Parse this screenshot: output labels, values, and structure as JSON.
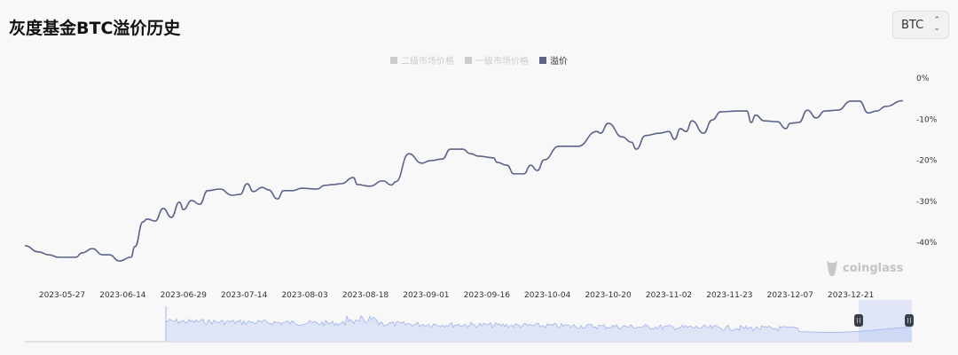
{
  "header": {
    "title": "灰度基金BTC溢价历史"
  },
  "selector": {
    "value": "BTC"
  },
  "legend": [
    {
      "label": "二级市场价格",
      "color": "#cccccc",
      "active": false
    },
    {
      "label": "一级市场价格",
      "color": "#cccccc",
      "active": false
    },
    {
      "label": "溢价",
      "color": "#5b6389",
      "active": true
    }
  ],
  "watermark": "coinglass",
  "chart_data": {
    "type": "line",
    "title": "",
    "xlabel": "",
    "ylabel": "",
    "x_ticks": [
      "2023-05-27",
      "2023-06-14",
      "2023-06-29",
      "2023-07-14",
      "2023-08-03",
      "2023-08-18",
      "2023-09-01",
      "2023-09-16",
      "2023-10-04",
      "2023-10-20",
      "2023-11-02",
      "2023-11-23",
      "2023-12-07",
      "2023-12-21"
    ],
    "y_ticks": [
      "0%",
      "-10%",
      "-20%",
      "-30%",
      "-40%"
    ],
    "ylim": [
      -45,
      0
    ],
    "unit": "%",
    "grid": false,
    "legend_position": "top",
    "line_color": "#5b6389",
    "series": [
      {
        "name": "溢价",
        "points": [
          [
            "2023-05-16",
            -40.8
          ],
          [
            "2023-05-20",
            -42.3
          ],
          [
            "2023-05-23",
            -43.0
          ],
          [
            "2023-05-26",
            -43.6
          ],
          [
            "2023-05-31",
            -43.6
          ],
          [
            "2023-06-02",
            -42.5
          ],
          [
            "2023-06-05",
            -41.5
          ],
          [
            "2023-06-08",
            -43.0
          ],
          [
            "2023-06-10",
            -43.0
          ],
          [
            "2023-06-13",
            -44.5
          ],
          [
            "2023-06-16",
            -43.6
          ],
          [
            "2023-06-17",
            -41.0
          ],
          [
            "2023-06-19",
            -35.0
          ],
          [
            "2023-06-20",
            -34.3
          ],
          [
            "2023-06-22",
            -34.8
          ],
          [
            "2023-06-24",
            -31.7
          ],
          [
            "2023-06-26",
            -33.9
          ],
          [
            "2023-06-28",
            -30.2
          ],
          [
            "2023-06-29",
            -32.0
          ],
          [
            "2023-07-01",
            -29.8
          ],
          [
            "2023-07-03",
            -30.7
          ],
          [
            "2023-07-05",
            -27.4
          ],
          [
            "2023-07-08",
            -27.0
          ],
          [
            "2023-07-11",
            -28.5
          ],
          [
            "2023-07-13",
            -28.3
          ],
          [
            "2023-07-15",
            -25.7
          ],
          [
            "2023-07-17",
            -27.6
          ],
          [
            "2023-07-20",
            -26.6
          ],
          [
            "2023-07-22",
            -27.2
          ],
          [
            "2023-07-25",
            -29.4
          ],
          [
            "2023-07-27",
            -27.4
          ],
          [
            "2023-07-30",
            -27.4
          ],
          [
            "2023-08-02",
            -26.8
          ],
          [
            "2023-08-06",
            -27.0
          ],
          [
            "2023-08-08",
            -26.1
          ],
          [
            "2023-08-10",
            -25.9
          ],
          [
            "2023-08-12",
            -25.7
          ],
          [
            "2023-08-15",
            -24.2
          ],
          [
            "2023-08-16",
            -25.9
          ],
          [
            "2023-08-19",
            -26.3
          ],
          [
            "2023-08-22",
            -25.0
          ],
          [
            "2023-08-24",
            -26.0
          ],
          [
            "2023-08-25",
            -25.2
          ],
          [
            "2023-08-28",
            -18.4
          ],
          [
            "2023-08-31",
            -20.7
          ],
          [
            "2023-09-02",
            -20.1
          ],
          [
            "2023-09-05",
            -19.7
          ],
          [
            "2023-09-07",
            -17.3
          ],
          [
            "2023-09-10",
            -17.3
          ],
          [
            "2023-09-12",
            -18.4
          ],
          [
            "2023-09-14",
            -19.0
          ],
          [
            "2023-09-18",
            -19.4
          ],
          [
            "2023-09-19",
            -20.5
          ],
          [
            "2023-09-22",
            -21.2
          ],
          [
            "2023-09-24",
            -23.3
          ],
          [
            "2023-09-27",
            -23.3
          ],
          [
            "2023-09-29",
            -21.2
          ],
          [
            "2023-10-01",
            -22.5
          ],
          [
            "2023-10-03",
            -19.9
          ],
          [
            "2023-10-07",
            -16.6
          ],
          [
            "2023-10-12",
            -16.6
          ],
          [
            "2023-10-17",
            -13.0
          ],
          [
            "2023-10-18",
            -13.4
          ],
          [
            "2023-10-20",
            -11.0
          ],
          [
            "2023-10-23",
            -14.3
          ],
          [
            "2023-10-25",
            -15.6
          ],
          [
            "2023-10-26",
            -17.3
          ],
          [
            "2023-10-28",
            -14.0
          ],
          [
            "2023-10-31",
            -13.4
          ],
          [
            "2023-11-02",
            -13.0
          ],
          [
            "2023-11-04",
            -14.9
          ],
          [
            "2023-11-06",
            -12.3
          ],
          [
            "2023-11-08",
            -13.0
          ],
          [
            "2023-11-10",
            -10.4
          ],
          [
            "2023-11-14",
            -13.4
          ],
          [
            "2023-11-17",
            -10.2
          ],
          [
            "2023-11-20",
            -8.2
          ],
          [
            "2023-11-25",
            -8.0
          ],
          [
            "2023-11-27",
            -8.0
          ],
          [
            "2023-11-28",
            -10.8
          ],
          [
            "2023-11-29",
            -9.0
          ],
          [
            "2023-12-01",
            -10.4
          ],
          [
            "2023-12-04",
            -10.6
          ],
          [
            "2023-12-06",
            -12.3
          ],
          [
            "2023-12-07",
            -11.0
          ],
          [
            "2023-12-09",
            -10.8
          ],
          [
            "2023-12-11",
            -7.8
          ],
          [
            "2023-12-13",
            -9.7
          ],
          [
            "2023-12-15",
            -8.0
          ],
          [
            "2023-12-18",
            -7.8
          ],
          [
            "2023-12-21",
            -5.6
          ],
          [
            "2023-12-23",
            -5.6
          ],
          [
            "2023-12-25",
            -8.5
          ],
          [
            "2023-12-27",
            -8.0
          ],
          [
            "2023-12-29",
            -6.9
          ],
          [
            "2024-01-02",
            -5.5
          ]
        ]
      }
    ],
    "navigator": {
      "selection": [
        0.94,
        1.0
      ],
      "fill_color": "#dfe5f7",
      "line_color": "#9fb3ea"
    }
  }
}
